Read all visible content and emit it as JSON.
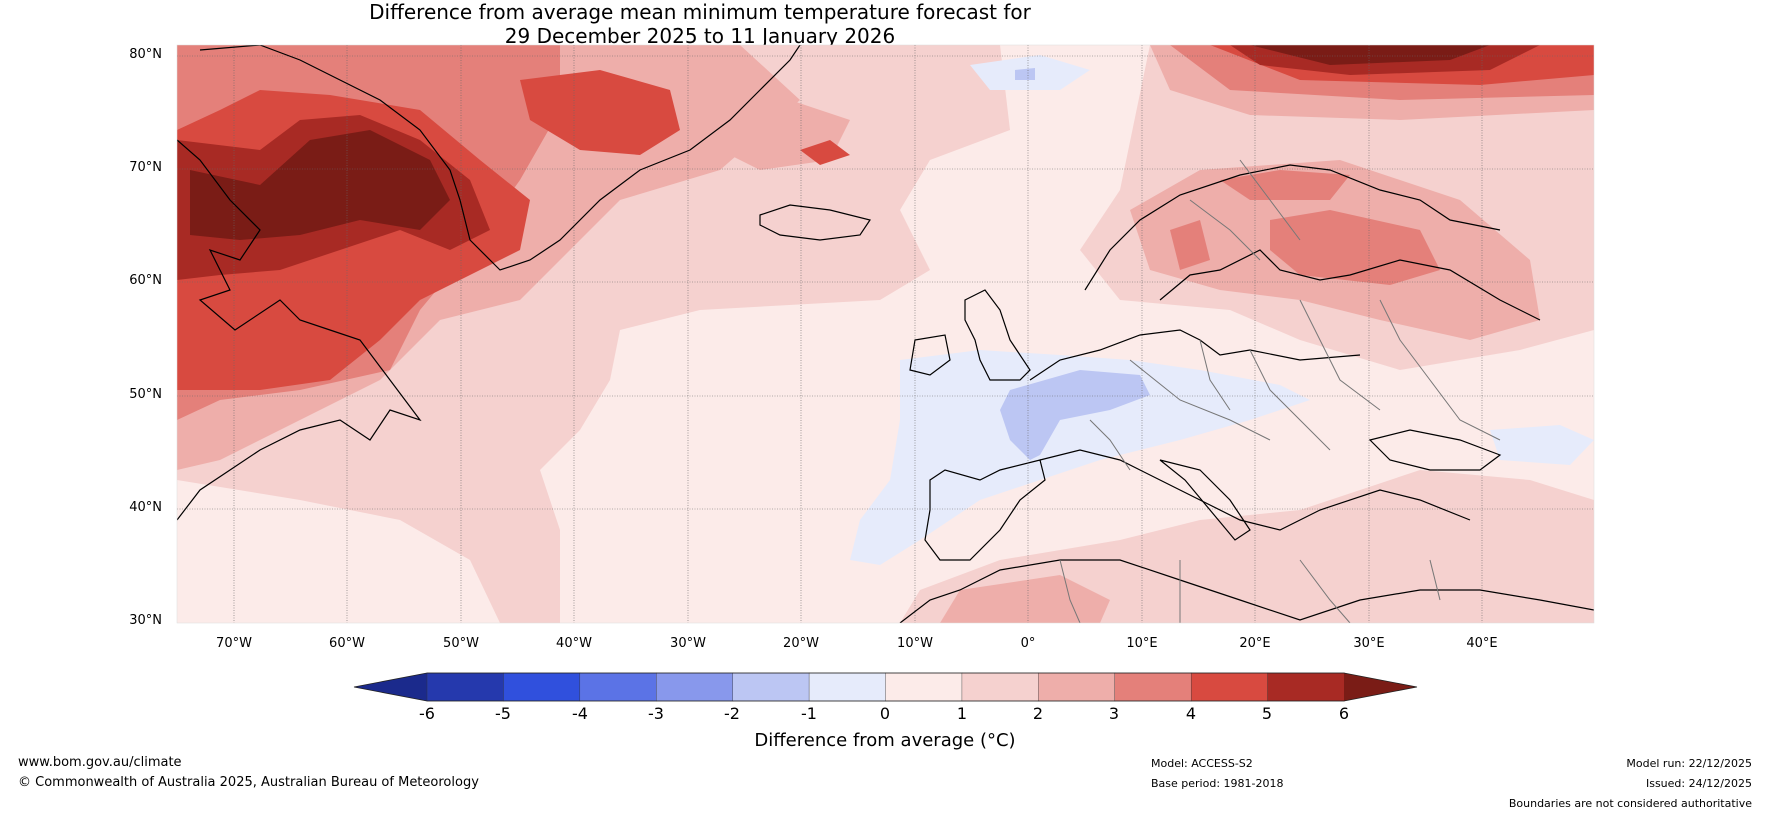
{
  "title": {
    "line1": "Difference from average mean minimum temperature forecast for",
    "line2": "29 December 2025 to 11 January 2026"
  },
  "map": {
    "lat_labels": [
      "80°N",
      "70°N",
      "60°N",
      "50°N",
      "40°N",
      "30°N"
    ],
    "lon_labels": [
      "70°W",
      "60°W",
      "50°W",
      "40°W",
      "30°W",
      "20°W",
      "10°W",
      "0°",
      "10°E",
      "20°E",
      "30°E",
      "40°E"
    ],
    "extent": {
      "lon_min": -75,
      "lon_max": 50,
      "lat_min": 30,
      "lat_max": 81
    }
  },
  "colorbar": {
    "ticks": [
      "-6",
      "-5",
      "-4",
      "-3",
      "-2",
      "-1",
      "0",
      "1",
      "2",
      "3",
      "4",
      "5",
      "6"
    ],
    "label": "Difference from average (°C)",
    "colors": {
      "below_min": "#1b2a8c",
      "bins": [
        "#2539ad",
        "#3050dd",
        "#5b73e6",
        "#8898ec",
        "#bcc6f3",
        "#e6ebfb",
        "#fcebe9",
        "#f5d1cf",
        "#eeaeaa",
        "#e4807a",
        "#d84a40",
        "#a82a24"
      ],
      "above_max": "#7a1c16"
    }
  },
  "footer": {
    "website": "www.bom.gov.au/climate",
    "copyright": "© Commonwealth of Australia 2025, Australian Bureau of Meteorology",
    "model": "Model: ACCESS-S2",
    "base_period": "Base period: 1981-2018",
    "model_run": "Model run: 22/12/2025",
    "issued": "Issued: 24/12/2025",
    "disclaimer": "Boundaries are not considered authoritative"
  }
}
